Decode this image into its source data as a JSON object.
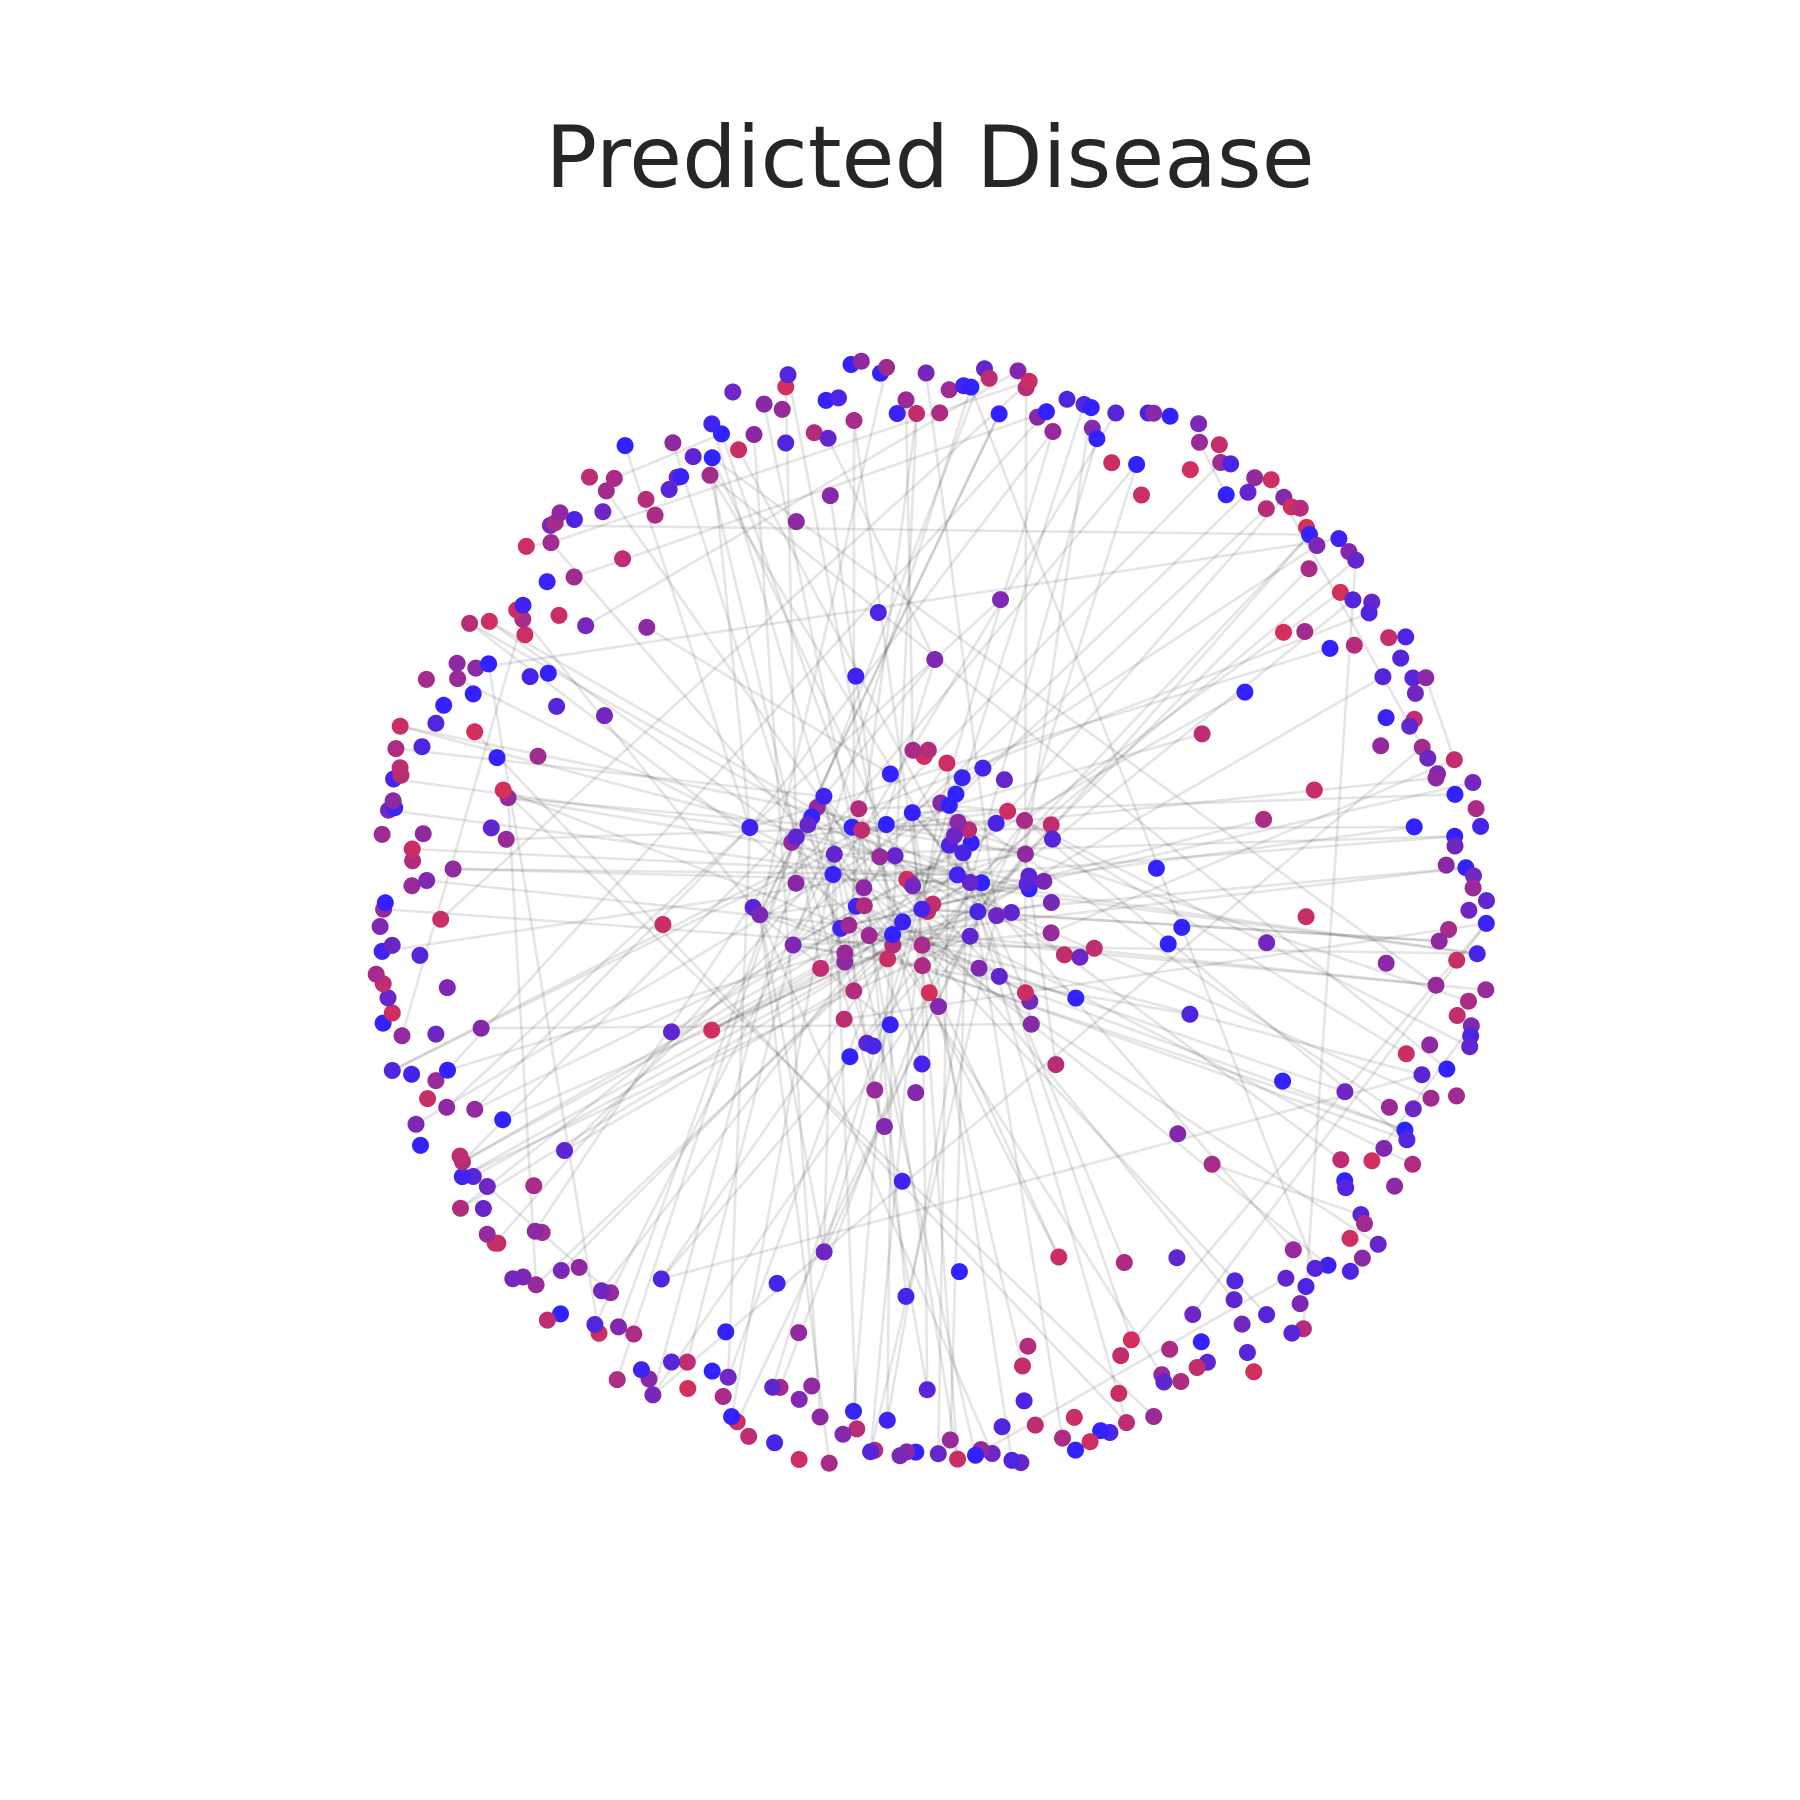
{
  "title": "Predicted Disease",
  "graph": {
    "type": "network",
    "layout": "circular-ring-with-center-hubs",
    "node_color_range": [
      "#3222ff",
      "#d62f5a"
    ],
    "edge_color": "#000000",
    "edge_opacity": 0.1,
    "ring_node_count": 330,
    "center_node_count": 120,
    "edge_count": 260
  }
}
